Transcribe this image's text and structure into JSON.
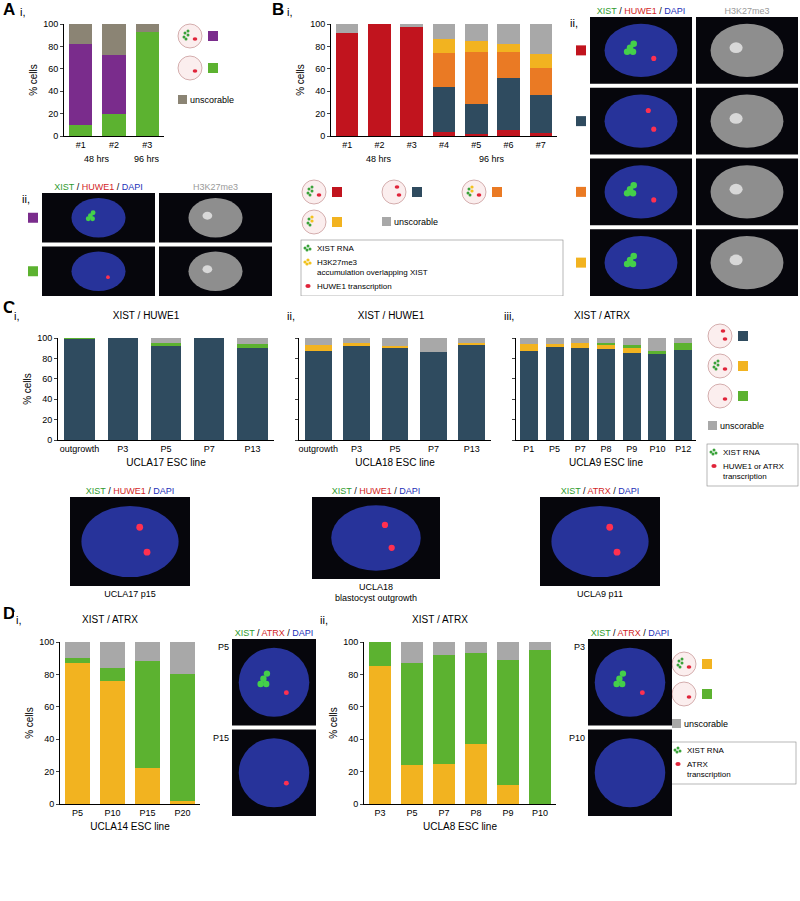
{
  "panel_letters": [
    "A",
    "B",
    "C",
    "D"
  ],
  "chart_data": [
    {
      "type": "bar",
      "stacked": true,
      "sublabel": "i,",
      "ylabel": "% cells",
      "ylim": [
        0,
        100
      ],
      "yticks": [
        0,
        20,
        40,
        60,
        80,
        100
      ],
      "categories": [
        "#1",
        "#2",
        "#3"
      ],
      "groups": [
        {
          "text": "48 hrs",
          "categories": [
            "#1",
            "#2"
          ]
        },
        {
          "text": "96 hrs",
          "categories": [
            "#3"
          ]
        }
      ],
      "series": [
        {
          "color": "#5cb230",
          "values": [
            10,
            20,
            93
          ]
        },
        {
          "color": "#7a2c8c",
          "values": [
            72,
            52,
            0
          ]
        },
        {
          "color": "#8b8474",
          "values": [
            18,
            28,
            7
          ]
        }
      ]
    },
    {
      "type": "bar",
      "stacked": true,
      "sublabel": "i,",
      "ylabel": "% cells",
      "ylim": [
        0,
        100
      ],
      "yticks": [
        0,
        20,
        40,
        60,
        80,
        100
      ],
      "categories": [
        "#1",
        "#2",
        "#3",
        "#4",
        "#5",
        "#6",
        "#7"
      ],
      "groups": [
        {
          "text": "48 hrs",
          "categories": [
            "#1",
            "#2",
            "#3"
          ]
        },
        {
          "text": "96 hrs",
          "categories": [
            "#4",
            "#5",
            "#6",
            "#7"
          ]
        }
      ],
      "series": [
        {
          "color": "#c1141e",
          "values": [
            92,
            100,
            97,
            4,
            2,
            5,
            3
          ]
        },
        {
          "color": "#2f4b5f",
          "values": [
            0,
            0,
            0,
            40,
            27,
            47,
            34
          ]
        },
        {
          "color": "#ea7a24",
          "values": [
            0,
            0,
            0,
            30,
            46,
            23,
            24
          ]
        },
        {
          "color": "#f2b320",
          "values": [
            0,
            0,
            0,
            13,
            10,
            7,
            12
          ]
        },
        {
          "color": "#a8a8a8",
          "values": [
            8,
            0,
            3,
            13,
            15,
            18,
            27
          ]
        }
      ]
    },
    {
      "type": "bar",
      "stacked": true,
      "sublabel": "i,",
      "title": "XIST / HUWE1",
      "ylabel": "% cells",
      "xlabel": "UCLA17 ESC line",
      "ylim": [
        0,
        100
      ],
      "yticks": [
        0,
        20,
        40,
        60,
        80,
        100
      ],
      "categories": [
        "outgrowth",
        "P3",
        "P5",
        "P7",
        "P13"
      ],
      "series": [
        {
          "color": "#2f4b5f",
          "values": [
            99,
            100,
            92,
            100,
            90
          ]
        },
        {
          "color": "#f2b320",
          "values": [
            0,
            0,
            0,
            0,
            0
          ]
        },
        {
          "color": "#5cb230",
          "values": [
            1,
            0,
            3,
            0,
            4
          ]
        },
        {
          "color": "#a8a8a8",
          "values": [
            0,
            0,
            5,
            0,
            6
          ]
        }
      ]
    },
    {
      "type": "bar",
      "stacked": true,
      "sublabel": "ii,",
      "title": "XIST / HUWE1",
      "xlabel": "UCLA18 ESC line",
      "tick_labels": "x",
      "ylim": [
        0,
        100
      ],
      "yticks": [
        0,
        20,
        40,
        60,
        80,
        100
      ],
      "categories": [
        "outgrowth",
        "P3",
        "P5",
        "P7",
        "P13"
      ],
      "series": [
        {
          "color": "#2f4b5f",
          "values": [
            87,
            92,
            90,
            86,
            93
          ]
        },
        {
          "color": "#f2b320",
          "values": [
            6,
            3,
            2,
            0,
            2
          ]
        },
        {
          "color": "#5cb230",
          "values": [
            0,
            0,
            0,
            0,
            0
          ]
        },
        {
          "color": "#a8a8a8",
          "values": [
            7,
            5,
            8,
            14,
            5
          ]
        }
      ]
    },
    {
      "type": "bar",
      "stacked": true,
      "sublabel": "iii,",
      "title": "XIST / ATRX",
      "xlabel": "UCLA9 ESC line",
      "tick_labels": "x",
      "ylim": [
        0,
        100
      ],
      "yticks": [
        0,
        20,
        40,
        60,
        80,
        100
      ],
      "categories": [
        "P1",
        "P5",
        "P7",
        "P8",
        "P9",
        "P10",
        "P12"
      ],
      "series": [
        {
          "color": "#2f4b5f",
          "values": [
            87,
            91,
            90,
            89,
            85,
            84,
            88
          ]
        },
        {
          "color": "#f2b320",
          "values": [
            7,
            3,
            5,
            4,
            5,
            0,
            0
          ]
        },
        {
          "color": "#5cb230",
          "values": [
            0,
            0,
            0,
            2,
            3,
            3,
            7
          ]
        },
        {
          "color": "#a8a8a8",
          "values": [
            6,
            6,
            5,
            5,
            7,
            13,
            5
          ]
        }
      ]
    },
    {
      "type": "bar",
      "stacked": true,
      "sublabel": "i,",
      "title": "XIST / ATRX",
      "ylabel": "% cells",
      "xlabel": "UCLA14 ESC line",
      "ylim": [
        0,
        100
      ],
      "yticks": [
        0,
        20,
        40,
        60,
        80,
        100
      ],
      "categories": [
        "P5",
        "P10",
        "P15",
        "P20"
      ],
      "series": [
        {
          "color": "#f2b320",
          "values": [
            87,
            76,
            22,
            2
          ]
        },
        {
          "color": "#5cb230",
          "values": [
            3,
            8,
            66,
            78
          ]
        },
        {
          "color": "#a8a8a8",
          "values": [
            10,
            16,
            12,
            20
          ]
        }
      ]
    },
    {
      "type": "bar",
      "stacked": true,
      "sublabel": "ii,",
      "title": "XIST / ATRX",
      "ylabel": "% cells",
      "xlabel": "UCLA8 ESC line",
      "ylim": [
        0,
        100
      ],
      "yticks": [
        0,
        20,
        40,
        60,
        80,
        100
      ],
      "categories": [
        "P3",
        "P5",
        "P7",
        "P8",
        "P9",
        "P10"
      ],
      "series": [
        {
          "color": "#f2b320",
          "values": [
            85,
            24,
            25,
            37,
            12,
            0
          ]
        },
        {
          "color": "#5cb230",
          "values": [
            15,
            63,
            67,
            56,
            77,
            95
          ]
        },
        {
          "color": "#a8a8a8",
          "values": [
            0,
            13,
            8,
            7,
            11,
            5
          ]
        }
      ]
    }
  ],
  "legends": [
    {
      "entries": [
        {
          "color": "#7a2c8c"
        },
        {
          "color": "#5cb230"
        },
        {
          "color": "#8b8474",
          "text": "unscorable"
        }
      ]
    },
    {
      "entries": [
        {
          "color": "#c1141e"
        },
        {
          "color": "#2f4b5f"
        },
        {
          "color": "#ea7a24"
        },
        {
          "color": "#f2b320"
        },
        {
          "color": "#a8a8a8",
          "text": "unscorable"
        }
      ],
      "key": [
        {
          "marker": "xist",
          "lines": [
            "XIST RNA"
          ]
        },
        {
          "marker": "h3k27me3",
          "lines": [
            "H3K27me3",
            "accumulation overlapping XIST"
          ]
        },
        {
          "marker": "dot",
          "lines": [
            "HUWE1 transcription"
          ]
        }
      ]
    },
    {
      "entries": [
        {
          "color": "#2f4b5f"
        },
        {
          "color": "#f2b320"
        },
        {
          "color": "#5cb230"
        },
        {
          "color": "#a8a8a8",
          "text": "unscorable"
        }
      ],
      "key": [
        {
          "marker": "xist",
          "lines": [
            "XIST RNA"
          ]
        },
        {
          "marker": "dot",
          "lines": [
            "HUWE1 or ATRX",
            "transcription"
          ]
        }
      ]
    },
    {
      "entries": [
        {
          "color": "#f2b320"
        },
        {
          "color": "#5cb230"
        },
        {
          "color": "#a8a8a8",
          "text": "unscorable"
        }
      ],
      "key": [
        {
          "marker": "xist",
          "lines": [
            "XIST RNA"
          ]
        },
        {
          "marker": "dot",
          "lines": [
            "ATRX",
            "transcription"
          ]
        }
      ]
    }
  ],
  "image_panels": [
    {
      "sublabel": "ii,",
      "headers": [
        [
          {
            "text": "XIST",
            "color": "#2e9a2e"
          },
          {
            "text": " / ",
            "color": "#000000"
          },
          {
            "text": "HUWE1",
            "color": "#d21f1f"
          },
          {
            "text": " / ",
            "color": "#000000"
          },
          {
            "text": "DAPI",
            "color": "#2231b8"
          }
        ],
        [
          {
            "text": "H3K27me3",
            "color": "#9a9a9a"
          }
        ]
      ],
      "rows": [
        {
          "color": "#7a2c8c"
        },
        {
          "color": "#5cb230"
        }
      ]
    },
    {
      "sublabel": "ii,",
      "headers": [
        [
          {
            "text": "XIST",
            "color": "#2e9a2e"
          },
          {
            "text": " / ",
            "color": "#000000"
          },
          {
            "text": "HUWE1",
            "color": "#d21f1f"
          },
          {
            "text": " / ",
            "color": "#000000"
          },
          {
            "text": "DAPI",
            "color": "#2231b8"
          }
        ],
        [
          {
            "text": "H3K27me3",
            "color": "#9a9a9a"
          }
        ]
      ],
      "rows": [
        {
          "color": "#c1141e"
        },
        {
          "color": "#2f4b5f"
        },
        {
          "color": "#ea7a24"
        },
        {
          "color": "#f2b320"
        }
      ]
    },
    {
      "headers": [
        [
          {
            "text": "XIST",
            "color": "#2e9a2e"
          },
          {
            "text": " / ",
            "color": "#000000"
          },
          {
            "text": "HUWE1",
            "color": "#d21f1f"
          },
          {
            "text": " / ",
            "color": "#000000"
          },
          {
            "text": "DAPI",
            "color": "#2231b8"
          }
        ]
      ],
      "rows": [
        {
          "caption": [
            "UCLA17 p15"
          ]
        }
      ]
    },
    {
      "headers": [
        [
          {
            "text": "XIST",
            "color": "#2e9a2e"
          },
          {
            "text": " / ",
            "color": "#000000"
          },
          {
            "text": "HUWE1",
            "color": "#d21f1f"
          },
          {
            "text": " / ",
            "color": "#000000"
          },
          {
            "text": "DAPI",
            "color": "#2231b8"
          }
        ]
      ],
      "rows": [
        {
          "caption": [
            "UCLA18",
            "blastocyst outgrowth"
          ]
        }
      ]
    },
    {
      "headers": [
        [
          {
            "text": "XIST",
            "color": "#2e9a2e"
          },
          {
            "text": " / ",
            "color": "#000000"
          },
          {
            "text": "ATRX",
            "color": "#d21f1f"
          },
          {
            "text": " / ",
            "color": "#000000"
          },
          {
            "text": "DAPI",
            "color": "#2231b8"
          }
        ]
      ],
      "rows": [
        {
          "caption": [
            "UCLA9 p11"
          ]
        }
      ]
    },
    {
      "headers": [
        [
          {
            "text": "XIST",
            "color": "#2e9a2e"
          },
          {
            "text": " / ",
            "color": "#000000"
          },
          {
            "text": "ATRX",
            "color": "#d21f1f"
          },
          {
            "text": " / ",
            "color": "#000000"
          },
          {
            "text": "DAPI",
            "color": "#2231b8"
          }
        ]
      ],
      "rows": [
        {
          "label": "P5"
        },
        {
          "label": "P15"
        }
      ]
    },
    {
      "headers": [
        [
          {
            "text": "XIST",
            "color": "#2e9a2e"
          },
          {
            "text": " / ",
            "color": "#000000"
          },
          {
            "text": "ATRX",
            "color": "#d21f1f"
          },
          {
            "text": " / ",
            "color": "#000000"
          },
          {
            "text": "DAPI",
            "color": "#2231b8"
          }
        ]
      ],
      "rows": [
        {
          "label": "P3"
        },
        {
          "label": "P10"
        }
      ]
    }
  ]
}
